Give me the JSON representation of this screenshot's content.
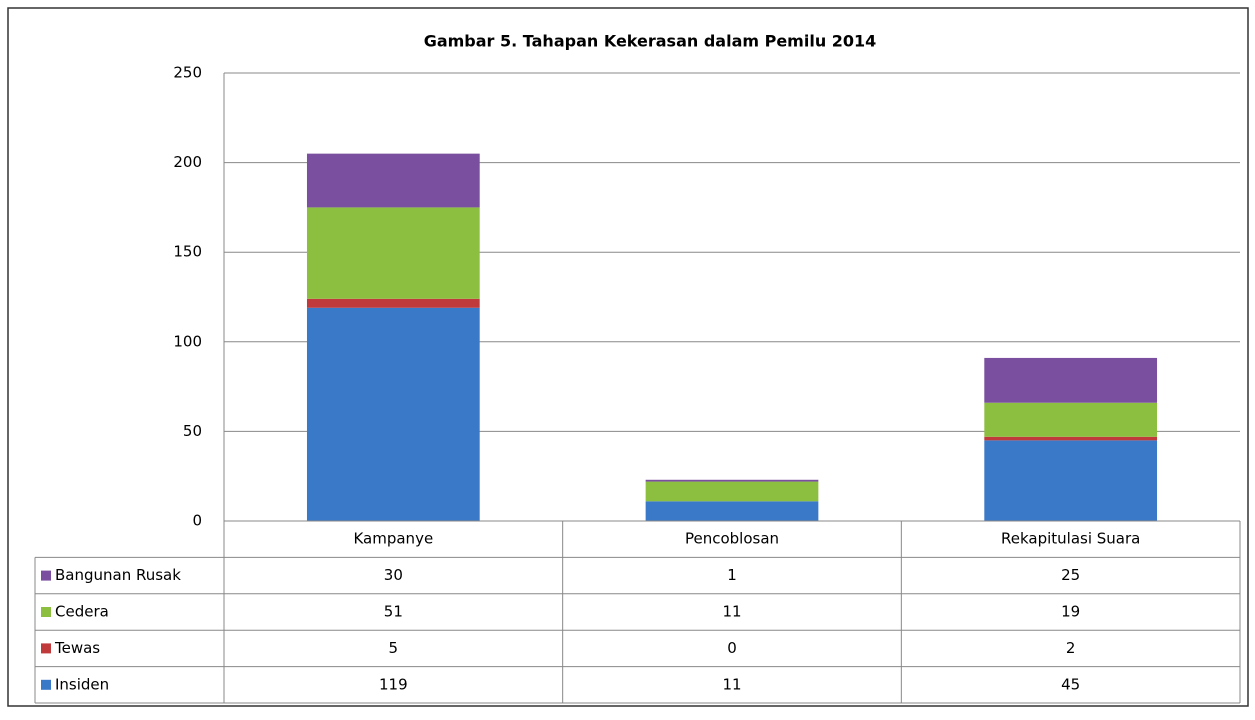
{
  "chart_data": {
    "type": "stacked_bar",
    "title": "Gambar 5. Tahapan Kekerasan dalam Pemilu 2014",
    "categories": [
      "Kampanye",
      "Pencoblosan",
      "Rekapitulasi Suara"
    ],
    "series": [
      {
        "name": "Insiden",
        "color": "#3a78c8",
        "values": [
          119,
          11,
          45
        ]
      },
      {
        "name": "Tewas",
        "color": "#c0393b",
        "values": [
          5,
          0,
          2
        ]
      },
      {
        "name": "Cedera",
        "color": "#8cbf3f",
        "values": [
          51,
          11,
          19
        ]
      },
      {
        "name": "Bangunan Rusak",
        "color": "#7a4fa0",
        "values": [
          30,
          1,
          25
        ]
      }
    ],
    "ylim": [
      0,
      250
    ],
    "yticks": [
      0,
      50,
      100,
      150,
      200,
      250
    ],
    "grid": true
  }
}
